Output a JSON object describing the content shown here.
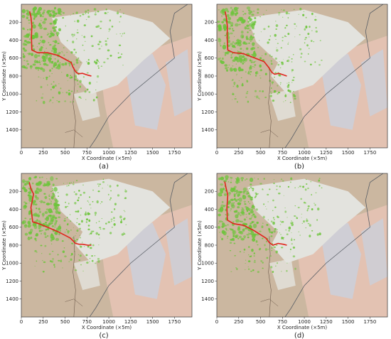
{
  "figure": {
    "panels": [
      {
        "label": "(a)"
      },
      {
        "label": "(b)"
      },
      {
        "label": "(c)"
      },
      {
        "label": "(d)"
      }
    ],
    "colors": {
      "path": "#e0241b",
      "vegetation": "#6cc43a",
      "terrain_light": "#e3e3de",
      "terrain_tan": "#cbb7a0",
      "terrain_pink": "#e3c2b2",
      "water_blue": "#c8d2e0",
      "road": "#5a5f66"
    }
  },
  "chart_data": [
    {
      "type": "line",
      "panel": "(a)",
      "xlabel": "X Coordinate (×5m)",
      "ylabel": "Y Coordinate (×5m)",
      "xlim": [
        0,
        1950
      ],
      "ylim": [
        1600,
        0
      ],
      "xticks": [
        0,
        250,
        500,
        750,
        1000,
        1250,
        1500,
        1750
      ],
      "yticks": [
        200,
        400,
        600,
        800,
        1000,
        1200,
        1400
      ],
      "series": [
        {
          "x": [
            95,
            110,
            120,
            115,
            120,
            185,
            300,
            420,
            570,
            590,
            620,
            650,
            700,
            760,
            800
          ],
          "y": [
            80,
            140,
            240,
            360,
            510,
            540,
            540,
            570,
            650,
            700,
            750,
            775,
            770,
            790,
            800
          ]
        }
      ]
    },
    {
      "type": "line",
      "panel": "(b)",
      "xlabel": "X Coordinate (×5m)",
      "ylabel": "Y Coordinate (×5m)",
      "xlim": [
        0,
        1950
      ],
      "ylim": [
        1600,
        0
      ],
      "xticks": [
        0,
        250,
        500,
        750,
        1000,
        1250,
        1500,
        1750
      ],
      "yticks": [
        200,
        400,
        600,
        800,
        1000,
        1200,
        1400
      ],
      "series": [
        {
          "x": [
            95,
            110,
            120,
            118,
            125,
            190,
            300,
            410,
            540,
            590,
            630,
            660,
            710,
            770,
            800
          ],
          "y": [
            80,
            150,
            250,
            370,
            510,
            540,
            550,
            590,
            640,
            700,
            760,
            780,
            770,
            790,
            800
          ]
        }
      ]
    },
    {
      "type": "line",
      "panel": "(c)",
      "xlabel": "X Coordinate (×5m)",
      "ylabel": "Y Coordinate (×5m)",
      "xlim": [
        0,
        1950
      ],
      "ylim": [
        1600,
        0
      ],
      "xticks": [
        0,
        250,
        500,
        750,
        1000,
        1250,
        1500,
        1750
      ],
      "yticks": [
        200,
        400,
        600,
        800,
        1000,
        1200,
        1400
      ],
      "series": [
        {
          "x": [
            90,
            110,
            140,
            110,
            130,
            200,
            300,
            420,
            560,
            620,
            660,
            700,
            760,
            800
          ],
          "y": [
            100,
            170,
            230,
            380,
            540,
            560,
            600,
            650,
            720,
            780,
            790,
            790,
            800,
            800
          ]
        }
      ]
    },
    {
      "type": "line",
      "panel": "(d)",
      "xlabel": "X Coordinate (×5m)",
      "ylabel": "Y Coordinate (×5m)",
      "xlim": [
        0,
        1950
      ],
      "ylim": [
        1600,
        0
      ],
      "xticks": [
        0,
        250,
        500,
        750,
        1000,
        1250,
        1500,
        1750
      ],
      "yticks": [
        200,
        400,
        600,
        800,
        1000,
        1200,
        1400
      ],
      "series": [
        {
          "x": [
            90,
            105,
            125,
            115,
            120,
            190,
            310,
            430,
            560,
            600,
            640,
            700,
            760,
            800
          ],
          "y": [
            90,
            160,
            240,
            380,
            520,
            560,
            580,
            640,
            720,
            770,
            800,
            780,
            790,
            800
          ]
        }
      ]
    }
  ]
}
